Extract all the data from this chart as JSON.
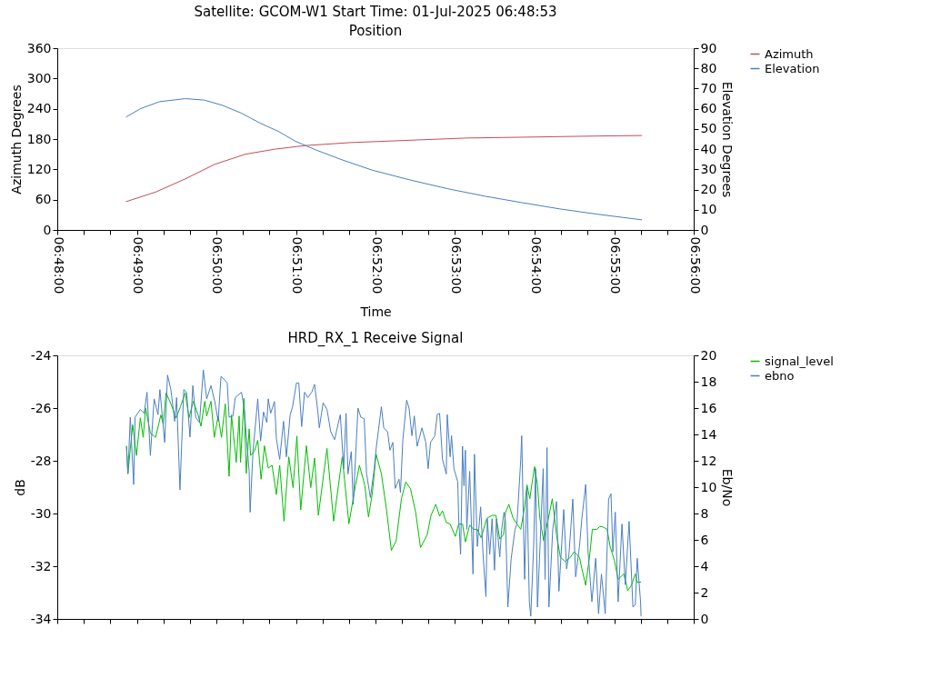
{
  "chart_data": [
    {
      "type": "line",
      "title": "Satellite: GCOM-W1    Start Time: 01-Jul-2025 06:48:53",
      "subtitle": "Position",
      "xlabel": "Time",
      "ylabel": "Azimuth Degrees",
      "y2label": "Elevation Degrees",
      "xlim": [
        6.8,
        6.933333
      ],
      "xticks": [
        {
          "value": 6.8,
          "label": "06:48:00"
        },
        {
          "value": 6.805556,
          "label": null
        },
        {
          "value": 6.811111,
          "label": null
        },
        {
          "value": 6.816667,
          "label": "06:49:00"
        },
        {
          "value": 6.822222,
          "label": null
        },
        {
          "value": 6.827778,
          "label": null
        },
        {
          "value": 6.833333,
          "label": "06:50:00"
        },
        {
          "value": 6.838889,
          "label": null
        },
        {
          "value": 6.844444,
          "label": null
        },
        {
          "value": 6.85,
          "label": "06:51:00"
        },
        {
          "value": 6.855556,
          "label": null
        },
        {
          "value": 6.861111,
          "label": null
        },
        {
          "value": 6.866667,
          "label": "06:52:00"
        },
        {
          "value": 6.872222,
          "label": null
        },
        {
          "value": 6.877778,
          "label": null
        },
        {
          "value": 6.883333,
          "label": "06:53:00"
        },
        {
          "value": 6.888889,
          "label": null
        },
        {
          "value": 6.894444,
          "label": null
        },
        {
          "value": 6.9,
          "label": "06:54:00"
        },
        {
          "value": 6.905556,
          "label": null
        },
        {
          "value": 6.911111,
          "label": null
        },
        {
          "value": 6.916667,
          "label": "06:55:00"
        },
        {
          "value": 6.922222,
          "label": null
        },
        {
          "value": 6.927778,
          "label": null
        },
        {
          "value": 6.933333,
          "label": "06:56:00"
        }
      ],
      "ylim": [
        0,
        360
      ],
      "yticks": [
        0,
        60,
        120,
        180,
        240,
        300,
        360
      ],
      "y2lim": [
        0,
        90
      ],
      "y2ticks": [
        0,
        10,
        20,
        30,
        40,
        50,
        60,
        70,
        80,
        90
      ],
      "grid": false,
      "legend": "right",
      "marker": "none",
      "line_style": "solid",
      "series": [
        {
          "name": "Azimuth",
          "color": "#c44e52",
          "x": [
            6.8144,
            6.8206,
            6.8268,
            6.833,
            6.8394,
            6.8456,
            6.8518,
            6.8614,
            6.8722,
            6.8856,
            6.8998,
            6.9131,
            6.9225
          ],
          "values": [
            56,
            75,
            101,
            130,
            150,
            160,
            167,
            173,
            177,
            182,
            184,
            186,
            187
          ]
        },
        {
          "name": "Elevation",
          "color": "#4a7fc1",
          "axis": "y2",
          "x": [
            6.8144,
            6.8174,
            6.8214,
            6.8268,
            6.8308,
            6.8346,
            6.8386,
            6.8424,
            6.8464,
            6.8499,
            6.8542,
            6.8598,
            6.866,
            6.8738,
            6.8818,
            6.8896,
            6.8974,
            6.9053,
            6.9131,
            6.9225
          ],
          "values": [
            55.9,
            60,
            63.5,
            65,
            64.3,
            61.7,
            57.8,
            53,
            48.7,
            43.9,
            39.6,
            34.6,
            29.6,
            24.8,
            20.4,
            16.7,
            13.5,
            10.4,
            7.8,
            5
          ]
        }
      ]
    },
    {
      "type": "line",
      "title": "HRD_RX_1 Receive Signal",
      "ylabel": "dB",
      "y2label": "Eb/No",
      "xlim": [
        6.8,
        6.933333
      ],
      "xticks": [
        {
          "value": 6.8,
          "label": null
        },
        {
          "value": 6.805556,
          "label": null
        },
        {
          "value": 6.811111,
          "label": null
        },
        {
          "value": 6.816667,
          "label": null
        },
        {
          "value": 6.822222,
          "label": null
        },
        {
          "value": 6.827778,
          "label": null
        },
        {
          "value": 6.833333,
          "label": null
        },
        {
          "value": 6.838889,
          "label": null
        },
        {
          "value": 6.844444,
          "label": null
        },
        {
          "value": 6.85,
          "label": null
        },
        {
          "value": 6.855556,
          "label": null
        },
        {
          "value": 6.861111,
          "label": null
        },
        {
          "value": 6.866667,
          "label": null
        },
        {
          "value": 6.872222,
          "label": null
        },
        {
          "value": 6.877778,
          "label": null
        },
        {
          "value": 6.883333,
          "label": null
        },
        {
          "value": 6.888889,
          "label": null
        },
        {
          "value": 6.894444,
          "label": null
        },
        {
          "value": 6.9,
          "label": null
        },
        {
          "value": 6.905556,
          "label": null
        },
        {
          "value": 6.911111,
          "label": null
        },
        {
          "value": 6.916667,
          "label": null
        },
        {
          "value": 6.922222,
          "label": null
        },
        {
          "value": 6.927778,
          "label": null
        },
        {
          "value": 6.933333,
          "label": null
        }
      ],
      "ylim": [
        -34,
        -24
      ],
      "yticks": [
        -34,
        -32,
        -30,
        -28,
        -26,
        -24
      ],
      "y2lim": [
        0,
        20
      ],
      "y2ticks": [
        0,
        2,
        4,
        6,
        8,
        10,
        12,
        14,
        16,
        18,
        20
      ],
      "tick_labels": "y",
      "grid": false,
      "legend": "right",
      "marker": "none",
      "line_style": "solid",
      "series": [
        {
          "name": "signal_level",
          "color": "#00c000",
          "x": [
            6.8145,
            6.8148,
            6.8158,
            6.8166,
            6.8174,
            6.818,
            6.8185,
            6.8195,
            6.8206,
            6.8217,
            6.8222,
            6.8228,
            6.8238,
            6.8249,
            6.8258,
            6.8268,
            6.8276,
            6.8285,
            6.8295,
            6.8301,
            6.8309,
            6.8313,
            6.8322,
            6.8329,
            6.8337,
            6.8344,
            6.8352,
            6.836,
            6.8365,
            6.8375,
            6.8381,
            6.8384,
            6.8391,
            6.8396,
            6.8402,
            6.8405,
            6.8413,
            6.842,
            6.8427,
            6.8434,
            6.8442,
            6.845,
            6.8459,
            6.8466,
            6.8475,
            6.8485,
            6.8494,
            6.8502,
            6.851,
            6.8522,
            6.8531,
            6.8539,
            6.8547,
            6.8565,
            6.8579,
            6.8597,
            6.8611,
            6.8625,
            6.8633,
            6.8644,
            6.8652,
            6.866,
            6.8668,
            6.8679,
            6.8689,
            6.87,
            6.871,
            6.8721,
            6.873,
            6.874,
            6.8751,
            6.8761,
            6.8775,
            6.8783,
            6.8793,
            6.8801,
            6.8807,
            6.8815,
            6.8823,
            6.8834,
            6.8841,
            6.8849,
            6.8855,
            6.8864,
            6.8872,
            6.888,
            6.8888,
            6.89,
            6.8911,
            6.8919,
            6.8927,
            6.8935,
            6.8939,
            6.8946,
            6.8955,
            6.8963,
            6.8971,
            6.8979,
            6.8984,
            6.899,
            6.8995,
            6.9,
            6.9006,
            6.9011,
            6.9019,
            6.9029,
            6.9037,
            6.9046,
            6.9054,
            6.9064,
            6.9075,
            6.9083,
            6.9094,
            6.9099,
            6.9107,
            6.9115,
            6.9121,
            6.9131,
            6.9136,
            6.9142,
            6.9152,
            6.9158,
            6.9167,
            6.9175,
            6.9187,
            6.9195,
            6.9203,
            6.9211,
            6.9215,
            6.9223
          ],
          "values": [
            -27.43,
            -28.48,
            -26.63,
            -27.8,
            -26.37,
            -27.11,
            -26.0,
            -26.95,
            -27.11,
            -26.26,
            -26.6,
            -25.42,
            -25.84,
            -26.37,
            -25.95,
            -25.42,
            -26.37,
            -25.74,
            -26.26,
            -26.69,
            -25.74,
            -26.3,
            -25.74,
            -27.11,
            -26.3,
            -27.11,
            -25.84,
            -28.59,
            -26.26,
            -28.06,
            -26.3,
            -28.06,
            -25.63,
            -28.48,
            -26.79,
            -27.8,
            -27.64,
            -27.22,
            -28.7,
            -27.43,
            -28.28,
            -28.17,
            -29.28,
            -28.17,
            -30.29,
            -27.85,
            -29.02,
            -27.06,
            -29.86,
            -27.43,
            -29.02,
            -27.9,
            -30.07,
            -27.53,
            -30.29,
            -27.85,
            -30.39,
            -28.91,
            -28.17,
            -28.91,
            -30.13,
            -29.23,
            -27.75,
            -28.49,
            -29.76,
            -31.4,
            -31.03,
            -29.44,
            -28.8,
            -29.06,
            -29.97,
            -31.29,
            -30.81,
            -30.07,
            -29.65,
            -30.1,
            -29.9,
            -30.34,
            -30.4,
            -30.87,
            -30.4,
            -30.4,
            -31.08,
            -30.44,
            -30.6,
            -30.6,
            -30.92,
            -30.18,
            -30.07,
            -30.07,
            -30.97,
            -30.8,
            -29.97,
            -29.65,
            -30.18,
            -30.4,
            -30.6,
            -29.76,
            -28.91,
            -29.44,
            -28.8,
            -28.22,
            -28.91,
            -30.18,
            -31.03,
            -30.18,
            -29.44,
            -30.81,
            -31.66,
            -31.82,
            -31.66,
            -31.45,
            -31.66,
            -32.09,
            -32.72,
            -31.66,
            -30.6,
            -30.6,
            -30.5,
            -30.5,
            -30.6,
            -31.24,
            -31.77,
            -32.5,
            -32.29,
            -32.93,
            -32.72,
            -32.29,
            -32.61,
            -32.6
          ]
        },
        {
          "name": "ebno",
          "color": "#4a7fc1",
          "axis": "y2",
          "x": [
            6.8145,
            6.8148,
            6.8153,
            6.816,
            6.8163,
            6.8174,
            6.8182,
            6.8188,
            6.8195,
            6.8203,
            6.8211,
            6.8215,
            6.8225,
            6.8231,
            6.8238,
            6.8246,
            6.825,
            6.8257,
            6.8265,
            6.8271,
            6.8278,
            6.8284,
            6.829,
            6.8298,
            6.8306,
            6.8313,
            6.8322,
            6.833,
            6.8337,
            6.8343,
            6.8349,
            6.8356,
            6.836,
            6.8368,
            6.8373,
            6.8386,
            6.8392,
            6.8397,
            6.8402,
            6.8404,
            6.841,
            6.842,
            6.8426,
            6.8432,
            6.8439,
            6.8442,
            6.8447,
            6.8455,
            6.8459,
            6.8466,
            6.8474,
            6.848,
            6.8488,
            6.8493,
            6.8501,
            6.8506,
            6.8512,
            6.8518,
            6.8525,
            6.8533,
            6.8539,
            6.8546,
            6.8549,
            6.8557,
            6.8565,
            6.8573,
            6.8581,
            6.8589,
            6.8593,
            6.86,
            6.8605,
            6.8609,
            6.8616,
            6.862,
            6.863,
            6.8636,
            6.8643,
            6.8648,
            6.8656,
            6.8664,
            6.8668,
            6.8679,
            6.8684,
            6.8692,
            6.8697,
            6.8703,
            6.8708,
            6.8716,
            6.8719,
            6.8724,
            6.8732,
            6.8737,
            6.8743,
            6.8748,
            6.8754,
            6.8764,
            6.8772,
            6.8777,
            6.8782,
            6.8791,
            6.8796,
            6.8801,
            6.8807,
            6.8815,
            6.8817,
            6.8823,
            6.8826,
            6.8831,
            6.8839,
            6.8841,
            6.8845,
            6.8849,
            6.8852,
            6.8855,
            6.8858,
            6.8864,
            6.8871,
            6.8874,
            6.888,
            6.8887,
            6.8892,
            6.8898,
            6.8901,
            6.8906,
            6.8911,
            6.8916,
            6.892,
            6.8927,
            6.8931,
            6.8936,
            6.8939,
            6.8944,
            6.8951,
            6.8959,
            6.8963,
            6.8971,
            6.8973,
            6.8979,
            6.8984,
            6.8989,
            6.8992,
            6.8998,
            6.9002,
            6.9006,
            6.9014,
            6.9018,
            6.9022,
            6.9026,
            6.903,
            6.9038,
            6.9046,
            6.9051,
            6.9061,
            6.9067,
            6.9072,
            6.908,
            6.9086,
            6.9094,
            6.9099,
            6.9107,
            6.9112,
            6.912,
            6.9128,
            6.9134,
            6.914,
            6.9148,
            6.9155,
            6.916,
            6.9164,
            6.9169,
            6.9175,
            6.9183,
            6.919,
            6.9198,
            6.9206,
            6.9211,
            6.9215,
            6.9222,
            6.9223
          ],
          "values": [
            13.1,
            11.0,
            15.3,
            10.2,
            15.3,
            15.9,
            15.6,
            17.2,
            12.4,
            16.7,
            15.5,
            17.4,
            13.4,
            18.5,
            17.4,
            15.0,
            16.8,
            9.8,
            17.4,
            17.2,
            13.8,
            17.7,
            15.3,
            14.9,
            18.9,
            16.7,
            17.7,
            16.5,
            15.0,
            18.4,
            18.2,
            17.9,
            15.3,
            15.4,
            16.8,
            17.2,
            15.9,
            13.4,
            11.2,
            8.1,
            12.7,
            16.7,
            13.5,
            15.7,
            14.9,
            16.7,
            15.6,
            16.5,
            13.7,
            12.1,
            15.0,
            12.3,
            15.5,
            16.1,
            17.9,
            17.9,
            14.6,
            17.2,
            16.8,
            17.2,
            17.8,
            15.7,
            14.5,
            16.4,
            15.9,
            14.2,
            13.6,
            14.9,
            15.5,
            11.4,
            15.6,
            11.0,
            12.7,
            8.7,
            16.0,
            15.3,
            15.2,
            11.0,
            9.2,
            11.4,
            12.9,
            16.1,
            14.5,
            14.2,
            12.8,
            13.4,
            9.9,
            10.6,
            9.6,
            13.6,
            16.6,
            16.0,
            13.9,
            15.4,
            13.1,
            14.5,
            13.4,
            11.4,
            13.4,
            13.9,
            15.5,
            15.6,
            12.1,
            11.0,
            15.5,
            12.3,
            13.9,
            11.4,
            10.4,
            7.6,
            4.9,
            13.1,
            10.1,
            12.8,
            6.8,
            11.2,
            3.4,
            12.5,
            5.5,
            8.5,
            4.9,
            1.7,
            7.6,
            4.9,
            7.6,
            3.7,
            7.6,
            4.7,
            6.8,
            8.1,
            7.4,
            0.9,
            4.6,
            6.8,
            7.2,
            12.1,
            13.9,
            3.0,
            10.0,
            1.3,
            0.2,
            5.5,
            11.4,
            0.9,
            7.8,
            11.4,
            3.0,
            13.0,
            0.9,
            6.8,
            8.9,
            2.1,
            8.3,
            3.8,
            4.9,
            9.1,
            3.2,
            5.5,
            7.6,
            10.2,
            5.1,
            1.3,
            4.6,
            0.4,
            3.4,
            0.4,
            9.1,
            9.5,
            5.1,
            8.1,
            1.3,
            7.2,
            2.6,
            7.4,
            0.9,
            1.1,
            4.6,
            1.3,
            0.2
          ]
        }
      ]
    }
  ]
}
